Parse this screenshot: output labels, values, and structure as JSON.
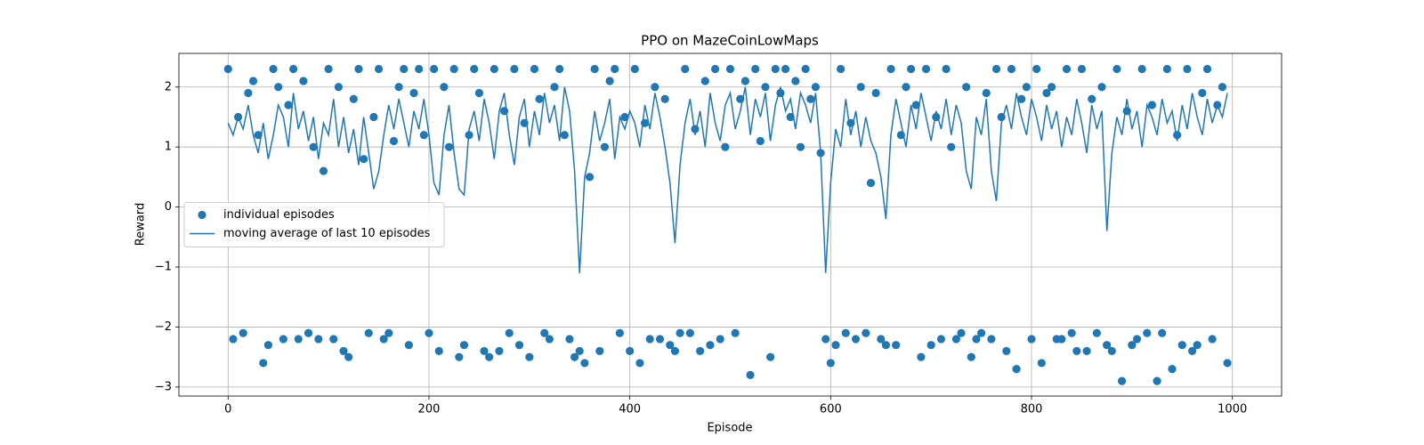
{
  "chart_data": {
    "type": "scatter",
    "title": "PPO on MazeCoinLowMaps",
    "x_label": "Episode",
    "y_label": "Reward",
    "xlim": [
      -49,
      1049
    ],
    "ylim": [
      -3.15,
      2.56
    ],
    "xticks": [
      0,
      200,
      400,
      600,
      800,
      1000
    ],
    "yticks": [
      {
        "value": -3,
        "label": "−3"
      },
      {
        "value": -2,
        "label": "−2"
      },
      {
        "value": -1,
        "label": "−1"
      },
      0,
      1,
      2
    ],
    "grid": true,
    "legend": "center left",
    "x": [
      0,
      5,
      10,
      15,
      20,
      25,
      30,
      35,
      40,
      45,
      50,
      55,
      60,
      65,
      70,
      75,
      80,
      85,
      90,
      95,
      100,
      105,
      110,
      115,
      120,
      125,
      130,
      135,
      140,
      145,
      150,
      155,
      160,
      165,
      170,
      175,
      180,
      185,
      190,
      195,
      200,
      205,
      210,
      215,
      220,
      225,
      230,
      235,
      240,
      245,
      250,
      255,
      260,
      265,
      270,
      275,
      280,
      285,
      290,
      295,
      300,
      305,
      310,
      315,
      320,
      325,
      330,
      335,
      340,
      345,
      350,
      355,
      360,
      365,
      370,
      375,
      380,
      385,
      390,
      395,
      400,
      405,
      410,
      415,
      420,
      425,
      430,
      435,
      440,
      445,
      450,
      455,
      460,
      465,
      470,
      475,
      480,
      485,
      490,
      495,
      500,
      505,
      510,
      515,
      520,
      525,
      530,
      535,
      540,
      545,
      550,
      555,
      560,
      565,
      570,
      575,
      580,
      585,
      590,
      595,
      600,
      605,
      610,
      615,
      620,
      625,
      630,
      635,
      640,
      645,
      650,
      655,
      660,
      665,
      670,
      675,
      680,
      685,
      690,
      695,
      700,
      705,
      710,
      715,
      720,
      725,
      730,
      735,
      740,
      745,
      750,
      755,
      760,
      765,
      770,
      775,
      780,
      785,
      790,
      795,
      800,
      805,
      810,
      815,
      820,
      825,
      830,
      835,
      840,
      845,
      850,
      855,
      860,
      865,
      870,
      875,
      880,
      885,
      890,
      895,
      900,
      905,
      910,
      915,
      920,
      925,
      930,
      935,
      940,
      945,
      950,
      955,
      960,
      965,
      970,
      975,
      980,
      985,
      990,
      995
    ],
    "series": [
      {
        "name": "individual episodes",
        "type": "scatter",
        "color": "#1f77b4",
        "values": [
          2.3,
          -2.2,
          1.5,
          -2.1,
          1.9,
          2.1,
          1.2,
          -2.6,
          -2.3,
          2.3,
          2.0,
          -2.2,
          1.7,
          2.3,
          -2.2,
          2.1,
          -2.1,
          1.0,
          -2.2,
          0.6,
          2.3,
          -2.2,
          2.0,
          -2.4,
          -2.5,
          1.8,
          2.3,
          0.8,
          -2.1,
          1.5,
          2.3,
          -2.2,
          -2.1,
          1.1,
          2.0,
          2.3,
          -2.3,
          1.9,
          2.3,
          1.2,
          -2.1,
          2.3,
          -2.4,
          2.0,
          1.0,
          2.3,
          -2.5,
          -2.3,
          1.2,
          2.3,
          1.9,
          -2.4,
          -2.5,
          2.3,
          -2.4,
          1.6,
          -2.1,
          2.3,
          -2.3,
          1.4,
          -2.5,
          2.3,
          1.8,
          -2.1,
          -2.2,
          2.0,
          2.3,
          1.2,
          -2.2,
          -2.5,
          -2.4,
          -2.6,
          0.5,
          2.3,
          -2.4,
          1.0,
          2.1,
          2.3,
          -2.1,
          1.5,
          -2.4,
          2.3,
          -2.6,
          1.4,
          -2.2,
          2.0,
          -2.2,
          1.8,
          -2.3,
          -2.4,
          -2.1,
          2.3,
          -2.1,
          1.3,
          -2.4,
          2.1,
          -2.3,
          2.3,
          -2.2,
          1.0,
          2.3,
          -2.1,
          1.8,
          2.1,
          -2.8,
          2.3,
          1.1,
          2.0,
          -2.5,
          2.3,
          1.9,
          2.3,
          1.5,
          2.1,
          1.0,
          2.3,
          1.8,
          2.0,
          0.9,
          -2.2,
          -2.6,
          -2.3,
          2.3,
          -2.1,
          1.4,
          -2.2,
          2.0,
          -2.1,
          0.4,
          1.9,
          -2.2,
          -2.3,
          2.3,
          -2.3,
          1.2,
          2.0,
          2.3,
          1.7,
          -2.5,
          2.3,
          -2.3,
          1.5,
          -2.2,
          2.3,
          1.0,
          -2.2,
          -2.1,
          2.0,
          -2.5,
          -2.2,
          -2.1,
          1.9,
          -2.2,
          2.3,
          1.5,
          -2.4,
          2.3,
          -2.7,
          1.8,
          2.0,
          -2.2,
          2.3,
          -2.6,
          1.9,
          2.0,
          -2.2,
          -2.2,
          2.3,
          -2.1,
          -2.4,
          2.3,
          -2.4,
          1.8,
          -2.1,
          2.0,
          -2.3,
          -2.4,
          2.3,
          -2.9,
          1.6,
          -2.3,
          -2.2,
          2.3,
          -2.1,
          1.7,
          -2.9,
          -2.1,
          2.3,
          -2.7,
          1.2,
          -2.3,
          2.3,
          -2.4,
          -2.3,
          1.9,
          2.3,
          -2.2,
          1.7,
          2.0,
          -2.6
        ]
      },
      {
        "name": "moving average of last 10 episodes",
        "type": "line",
        "color": "#1f77b4",
        "values": [
          1.4,
          1.2,
          1.5,
          1.3,
          1.7,
          1.2,
          0.9,
          1.4,
          0.8,
          1.2,
          1.7,
          1.5,
          1.0,
          1.9,
          1.3,
          1.6,
          1.1,
          1.5,
          0.8,
          1.4,
          1.2,
          1.8,
          1.0,
          1.5,
          0.9,
          1.3,
          0.7,
          1.5,
          0.9,
          0.3,
          0.6,
          1.2,
          1.7,
          1.3,
          1.8,
          1.4,
          1.0,
          1.6,
          1.3,
          1.8,
          1.2,
          0.4,
          0.2,
          1.2,
          1.7,
          0.9,
          0.3,
          0.2,
          1.3,
          1.6,
          1.1,
          1.8,
          1.4,
          0.8,
          1.6,
          1.9,
          1.2,
          0.7,
          1.5,
          1.8,
          1.0,
          1.6,
          1.2,
          1.9,
          1.4,
          1.7,
          1.1,
          2.0,
          1.6,
          0.6,
          -1.1,
          0.5,
          0.9,
          1.6,
          1.1,
          1.4,
          1.8,
          0.8,
          1.5,
          1.3,
          1.6,
          1.4,
          1.0,
          1.7,
          1.3,
          1.9,
          1.5,
          1.0,
          0.4,
          -0.6,
          0.7,
          1.4,
          1.8,
          1.2,
          1.6,
          1.0,
          1.9,
          1.4,
          1.1,
          1.7,
          1.9,
          1.3,
          1.6,
          2.0,
          1.2,
          1.8,
          1.5,
          1.9,
          1.1,
          1.7,
          2.0,
          1.6,
          1.8,
          1.3,
          1.9,
          1.7,
          1.4,
          1.9,
          0.9,
          -1.1,
          0.4,
          1.3,
          1.0,
          1.8,
          1.2,
          1.6,
          1.0,
          1.5,
          1.1,
          0.9,
          0.5,
          -0.2,
          1.2,
          1.8,
          1.4,
          1.0,
          1.7,
          1.3,
          1.9,
          1.5,
          1.1,
          1.6,
          1.3,
          1.8,
          1.2,
          1.7,
          1.4,
          0.6,
          0.3,
          1.5,
          1.2,
          1.8,
          0.6,
          0.1,
          1.4,
          1.7,
          1.3,
          1.9,
          1.5,
          1.2,
          1.8,
          1.5,
          1.1,
          1.7,
          1.3,
          1.6,
          1.0,
          1.5,
          1.2,
          1.8,
          1.4,
          0.9,
          1.7,
          1.3,
          1.6,
          -0.4,
          0.9,
          1.5,
          1.2,
          1.8,
          1.3,
          1.6,
          1.0,
          1.7,
          1.5,
          1.2,
          1.8,
          1.4,
          1.6,
          1.1,
          1.7,
          1.3,
          1.9,
          1.5,
          1.2,
          1.8,
          1.4,
          1.7,
          1.5,
          1.9
        ]
      }
    ]
  }
}
